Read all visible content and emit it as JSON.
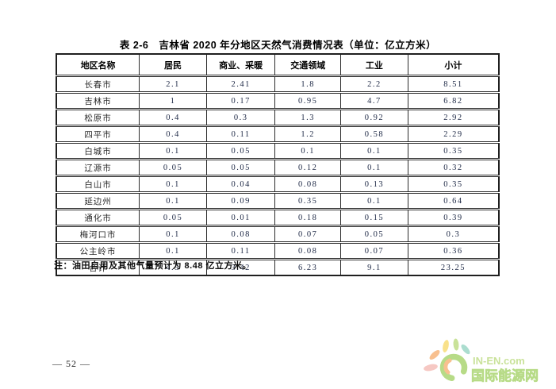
{
  "document": {
    "title": "表 2-6　吉林省 2020 年分地区天然气消费情况表（单位：亿立方米）",
    "note": "注：油田自用及其他气量预计为 8.48 亿立方米。",
    "page_number": "— 52 —"
  },
  "watermark": {
    "site": "IN-EN.com",
    "name": "国际能源网",
    "colors": {
      "green": "#8CC63F",
      "light_green": "#A9D15C",
      "yellow": "#F6D043",
      "orange": "#F49B4B",
      "pink": "#F2A8A0",
      "teal": "#79C9B2"
    }
  },
  "chart_data": {
    "type": "table",
    "title": "吉林省2020年分地区天然气消费情况表",
    "unit": "亿立方米",
    "columns": [
      "地区名称",
      "居民",
      "商业、采暖",
      "交通领域",
      "工业",
      "小计"
    ],
    "rows": [
      [
        "长春市",
        "2.1",
        "2.41",
        "1.8",
        "2.2",
        "8.51"
      ],
      [
        "吉林市",
        "1",
        "0.17",
        "0.95",
        "4.7",
        "6.82"
      ],
      [
        "松原市",
        "0.4",
        "0.3",
        "1.3",
        "0.92",
        "2.92"
      ],
      [
        "四平市",
        "0.4",
        "0.11",
        "1.2",
        "0.58",
        "2.29"
      ],
      [
        "白城市",
        "0.1",
        "0.05",
        "0.1",
        "0.1",
        "0.35"
      ],
      [
        "辽源市",
        "0.05",
        "0.05",
        "0.12",
        "0.1",
        "0.32"
      ],
      [
        "白山市",
        "0.1",
        "0.04",
        "0.08",
        "0.13",
        "0.35"
      ],
      [
        "延边州",
        "0.1",
        "0.09",
        "0.35",
        "0.1",
        "0.64"
      ],
      [
        "通化市",
        "0.05",
        "0.01",
        "0.18",
        "0.15",
        "0.39"
      ],
      [
        "梅河口市",
        "0.1",
        "0.08",
        "0.07",
        "0.05",
        "0.3"
      ],
      [
        "公主岭市",
        "0.1",
        "0.11",
        "0.08",
        "0.07",
        "0.36"
      ],
      [
        "合计",
        "4.5",
        "3.42",
        "6.23",
        "9.1",
        "23.25"
      ]
    ]
  }
}
